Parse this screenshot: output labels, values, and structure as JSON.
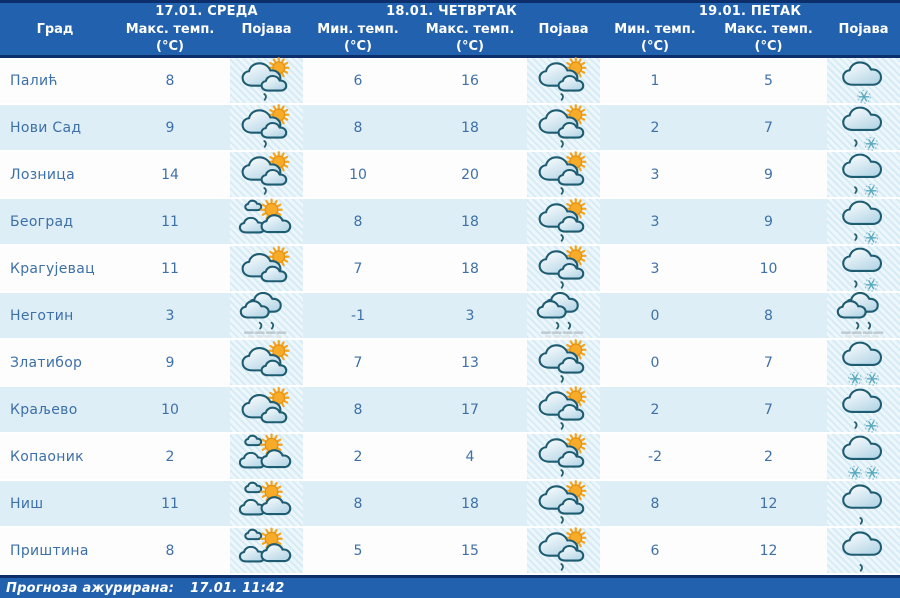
{
  "columns": {
    "city": "Град",
    "min_temp": "Мин. темп.",
    "max_temp": "Макс. темп.",
    "phenomenon": "Појава",
    "unit": "(°C)"
  },
  "days": [
    {
      "label": "17.01. СРЕДА"
    },
    {
      "label": "18.01. ЧЕТВРТАК"
    },
    {
      "label": "19.01. ПЕТАК"
    }
  ],
  "icon_types": {
    "sun_clouds_drizzle": "sun behind clouds with light rain",
    "sun_clouds": "sun peeking behind clouds",
    "partly_cloudy": "partly cloudy, sun with clouds",
    "rain_fog": "cloudy with rain and fog",
    "cloud_snow": "cloudy with snow",
    "cloud_sleet": "cloudy with rain and snow",
    "cloud_snow2": "cloudy with heavy snow",
    "cloud_drizzle": "cloudy with light rain"
  },
  "rows": [
    {
      "city": "Палић",
      "day1": {
        "max": "8",
        "icon": "sun_clouds_drizzle"
      },
      "day2": {
        "min": "6",
        "max": "16",
        "icon": "sun_clouds_drizzle"
      },
      "day3": {
        "min": "1",
        "max": "5",
        "icon": "cloud_snow"
      }
    },
    {
      "city": "Нови Сад",
      "day1": {
        "max": "9",
        "icon": "sun_clouds_drizzle"
      },
      "day2": {
        "min": "8",
        "max": "18",
        "icon": "sun_clouds_drizzle"
      },
      "day3": {
        "min": "2",
        "max": "7",
        "icon": "cloud_sleet"
      }
    },
    {
      "city": "Лозница",
      "day1": {
        "max": "14",
        "icon": "sun_clouds_drizzle"
      },
      "day2": {
        "min": "10",
        "max": "20",
        "icon": "sun_clouds_drizzle"
      },
      "day3": {
        "min": "3",
        "max": "9",
        "icon": "cloud_sleet"
      }
    },
    {
      "city": "Београд",
      "day1": {
        "max": "11",
        "icon": "partly_cloudy"
      },
      "day2": {
        "min": "8",
        "max": "18",
        "icon": "sun_clouds_drizzle"
      },
      "day3": {
        "min": "3",
        "max": "9",
        "icon": "cloud_sleet"
      }
    },
    {
      "city": "Крагујевац",
      "day1": {
        "max": "11",
        "icon": "sun_clouds"
      },
      "day2": {
        "min": "7",
        "max": "18",
        "icon": "sun_clouds_drizzle"
      },
      "day3": {
        "min": "3",
        "max": "10",
        "icon": "cloud_sleet"
      }
    },
    {
      "city": "Неготин",
      "day1": {
        "max": "3",
        "icon": "rain_fog"
      },
      "day2": {
        "min": "-1",
        "max": "3",
        "icon": "rain_fog"
      },
      "day3": {
        "min": "0",
        "max": "8",
        "icon": "rain_fog"
      }
    },
    {
      "city": "Златибор",
      "day1": {
        "max": "9",
        "icon": "sun_clouds"
      },
      "day2": {
        "min": "7",
        "max": "13",
        "icon": "sun_clouds_drizzle"
      },
      "day3": {
        "min": "0",
        "max": "7",
        "icon": "cloud_snow2"
      }
    },
    {
      "city": "Краљево",
      "day1": {
        "max": "10",
        "icon": "sun_clouds"
      },
      "day2": {
        "min": "8",
        "max": "17",
        "icon": "sun_clouds_drizzle"
      },
      "day3": {
        "min": "2",
        "max": "7",
        "icon": "cloud_sleet"
      }
    },
    {
      "city": "Копаоник",
      "day1": {
        "max": "2",
        "icon": "partly_cloudy"
      },
      "day2": {
        "min": "2",
        "max": "4",
        "icon": "sun_clouds_drizzle"
      },
      "day3": {
        "min": "-2",
        "max": "2",
        "icon": "cloud_snow2"
      }
    },
    {
      "city": "Ниш",
      "day1": {
        "max": "11",
        "icon": "partly_cloudy"
      },
      "day2": {
        "min": "8",
        "max": "18",
        "icon": "sun_clouds_drizzle"
      },
      "day3": {
        "min": "8",
        "max": "12",
        "icon": "cloud_drizzle"
      }
    },
    {
      "city": "Приштина",
      "day1": {
        "max": "8",
        "icon": "partly_cloudy"
      },
      "day2": {
        "min": "5",
        "max": "15",
        "icon": "sun_clouds_drizzle"
      },
      "day3": {
        "min": "6",
        "max": "12",
        "icon": "cloud_drizzle"
      }
    }
  ],
  "footer": {
    "label": "Прогноза ажурирана:",
    "updated": "17.01. 11:42"
  },
  "colors": {
    "header_bg": "#2261ae",
    "header_border": "#0c2f6b",
    "header_text": "#ffffff",
    "row_bg": "#fdfdfd",
    "row_alt_bg": "#ddeef6",
    "text": "#3e70a8",
    "sun": "#f8ab29",
    "cloud_outline": "#1e5c71"
  }
}
